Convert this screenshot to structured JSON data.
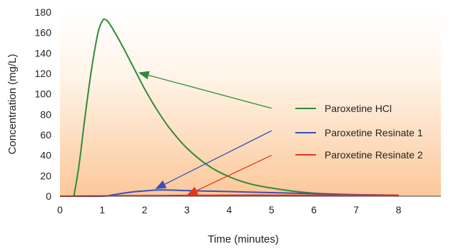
{
  "chart_data": {
    "type": "line",
    "title": "",
    "xlabel": "Time (minutes)",
    "ylabel": "Concentration (mg/L)",
    "xlim": [
      0,
      9
    ],
    "ylim": [
      0,
      180
    ],
    "xticks": [
      "0",
      "1",
      "2",
      "3",
      "4",
      "5",
      "6",
      "7",
      "8"
    ],
    "yticks": [
      "0",
      "20",
      "40",
      "60",
      "80",
      "100",
      "120",
      "140",
      "160",
      "180"
    ],
    "grid": false,
    "legend": "right",
    "series": [
      {
        "name": "Paroxetine HCl",
        "color": "#2e8b3a",
        "x": [
          0.33,
          0.45,
          0.6,
          0.75,
          0.9,
          1.0,
          1.05,
          1.15,
          1.3,
          1.5,
          1.75,
          2.0,
          2.3,
          2.6,
          3.0,
          3.5,
          4.0,
          4.5,
          5.0,
          5.5,
          6.0,
          6.5,
          7.0,
          7.5,
          8.0
        ],
        "y": [
          0,
          30,
          80,
          125,
          160,
          171,
          173,
          170,
          160,
          145,
          125,
          105,
          84,
          66,
          47,
          30,
          19,
          12,
          8,
          5,
          3,
          2,
          1,
          0.5,
          0.3
        ]
      },
      {
        "name": "Paroxetine Resinate 1",
        "color": "#3b4fb5",
        "x": [
          0,
          1.0,
          1.2,
          1.5,
          1.8,
          2.1,
          2.3,
          2.6,
          3.0,
          3.5,
          4.0,
          5.0,
          6.0,
          7.0,
          8.0
        ],
        "y": [
          0,
          0,
          1,
          3,
          4.5,
          5.5,
          6,
          6,
          5.5,
          5,
          4.5,
          3.5,
          2.5,
          1.5,
          1
        ]
      },
      {
        "name": "Paroxetine Resinate 2",
        "color": "#e8341c",
        "x": [
          0,
          1.0,
          2.0,
          3.0,
          4.0,
          5.0,
          6.0,
          7.0,
          8.0
        ],
        "y": [
          0,
          0.3,
          0.5,
          0.8,
          1,
          1,
          1,
          1,
          1
        ]
      }
    ],
    "annotations": [
      {
        "series": 0,
        "from": [
          5.0,
          86
        ],
        "to": [
          1.85,
          121
        ]
      },
      {
        "series": 1,
        "from": [
          5.0,
          64
        ],
        "to": [
          2.25,
          7
        ]
      },
      {
        "series": 2,
        "from": [
          5.0,
          40
        ],
        "to": [
          3.0,
          1
        ]
      }
    ]
  }
}
